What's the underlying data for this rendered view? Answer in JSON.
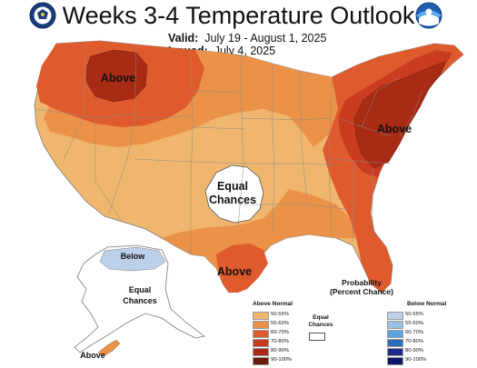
{
  "title": "Weeks 3-4 Temperature Outlook",
  "valid_label": "Valid:",
  "valid_value": "July 19 - August 1, 2025",
  "issued_label": "Issued:",
  "issued_value": "July 4, 2025",
  "map_labels": {
    "above_northwest": "Above",
    "above_northeast": "Above",
    "equal_center_1": "Equal",
    "equal_center_2": "Chances",
    "above_texas": "Above",
    "below_alaska": "Below",
    "equal_alaska_1": "Equal",
    "equal_alaska_2": "Chances",
    "above_alaska": "Above"
  },
  "legend": {
    "title_1": "Probability",
    "title_2": "(Percent Chance)",
    "above_header": "Above Normal",
    "below_header": "Below Normal",
    "equal_1": "Equal",
    "equal_2": "Chances",
    "above_rows": [
      {
        "label": "50-55%",
        "color": "#f0b66e"
      },
      {
        "label": "55-60%",
        "color": "#ec9248"
      },
      {
        "label": "60-70%",
        "color": "#df5b2d"
      },
      {
        "label": "70-80%",
        "color": "#c93c20"
      },
      {
        "label": "80-90%",
        "color": "#a82b14"
      },
      {
        "label": "90-100%",
        "color": "#6c1a08"
      }
    ],
    "below_rows": [
      {
        "label": "50-55%",
        "color": "#bdd0e9"
      },
      {
        "label": "55-60%",
        "color": "#99c1e6"
      },
      {
        "label": "60-70%",
        "color": "#5ea4dc"
      },
      {
        "label": "70-80%",
        "color": "#2f6fb8"
      },
      {
        "label": "80-90%",
        "color": "#1f2d88"
      },
      {
        "label": "90-100%",
        "color": "#11156a"
      }
    ]
  },
  "colors": {
    "cat_50_55": "#f0b66e",
    "cat_55_60": "#ec9248",
    "cat_60_70": "#df5b2d",
    "cat_70_80": "#c93c20",
    "cat_80_90": "#a82b14",
    "below_50_55": "#bdd0e9",
    "border": "#7a7a7a",
    "water": "#ffffff"
  },
  "logos": {
    "left": "commerce-seal",
    "right": "noaa-logo"
  }
}
